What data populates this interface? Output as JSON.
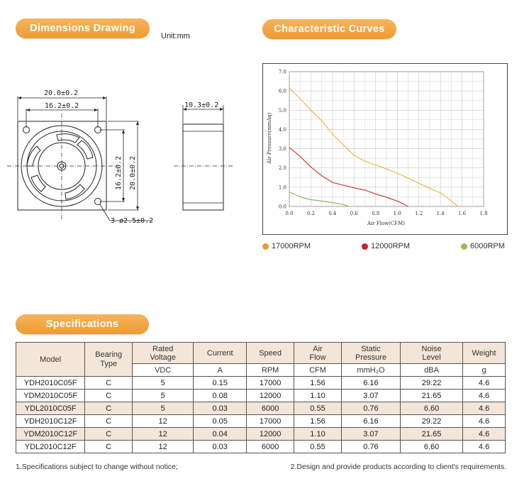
{
  "header": {
    "dimensions_title": "Dimensions Drawing",
    "unit_label": "Unit:mm",
    "curves_title": "Characteristic Curves",
    "specs_title": "Specifications"
  },
  "drawing": {
    "width_outer": "20.0±0.2",
    "width_inner": "16.2±0.2",
    "height_inner": "16.2±0.2",
    "height_outer": "20.0±0.2",
    "hole_spec": "3-ø2.5±0.2",
    "thickness": "10.3±0.2"
  },
  "chart_data": {
    "type": "line",
    "xlabel": "Air Flow(CFM)",
    "ylabel": "Air Pressure(mmAq)",
    "xlim": [
      0,
      1.8
    ],
    "ylim": [
      0,
      7.0
    ],
    "xticks": [
      "0.0",
      "0.2",
      "0.4",
      "0.6",
      "0.8",
      "1.0",
      "1.2",
      "1.4",
      "1.6",
      "1.8"
    ],
    "yticks": [
      "0.0",
      "1.0",
      "2.0",
      "3.0",
      "4.0",
      "5.0",
      "6.0",
      "7.0"
    ],
    "grid": true,
    "series": [
      {
        "name": "17000RPM",
        "color": "#f0b545",
        "x": [
          0,
          0.1,
          0.2,
          0.3,
          0.4,
          0.5,
          0.6,
          0.7,
          0.8,
          0.9,
          1.0,
          1.1,
          1.2,
          1.3,
          1.4,
          1.5,
          1.56
        ],
        "y": [
          6.16,
          5.6,
          5.0,
          4.45,
          3.75,
          3.2,
          2.65,
          2.35,
          2.15,
          1.95,
          1.72,
          1.48,
          1.2,
          0.95,
          0.7,
          0.3,
          0.0
        ]
      },
      {
        "name": "12000RPM",
        "color": "#d43a32",
        "x": [
          0,
          0.1,
          0.2,
          0.3,
          0.4,
          0.5,
          0.6,
          0.7,
          0.8,
          0.9,
          1.0,
          1.05,
          1.1
        ],
        "y": [
          3.07,
          2.6,
          2.05,
          1.6,
          1.25,
          1.1,
          0.97,
          0.85,
          0.65,
          0.48,
          0.28,
          0.15,
          0.0
        ]
      },
      {
        "name": "6000RPM",
        "color": "#8fb858",
        "x": [
          0,
          0.1,
          0.2,
          0.3,
          0.4,
          0.5,
          0.55
        ],
        "y": [
          0.76,
          0.5,
          0.35,
          0.28,
          0.2,
          0.1,
          0.0
        ]
      }
    ]
  },
  "legend": [
    {
      "label": "17000RPM",
      "color": "#ef9a3a"
    },
    {
      "label": "12000RPM",
      "color": "#c8241c"
    },
    {
      "label": "6000RPM",
      "color": "#8fc04a"
    }
  ],
  "table": {
    "headers": [
      "Model",
      "Bearing\nType",
      "Rated\nVoltage",
      "Current",
      "Speed",
      "Air\nFlow",
      "Static\nPressure",
      "Noise\nLevel",
      "Weight"
    ],
    "units": [
      "VDC",
      "A",
      "RPM",
      "CFM",
      "mmH₂O",
      "dBA",
      "g"
    ],
    "rows": [
      [
        "YDH2010C05F",
        "C",
        "5",
        "0.15",
        "17000",
        "1.56",
        "6.16",
        "29.22",
        "4.6"
      ],
      [
        "YDM2010C05F",
        "C",
        "5",
        "0.08",
        "12000",
        "1.10",
        "3.07",
        "21.65",
        "4.6"
      ],
      [
        "YDL2010C05F",
        "C",
        "5",
        "0.03",
        "6000",
        "0.55",
        "0.76",
        "6.60",
        "4.6"
      ],
      [
        "YDH2010C12F",
        "C",
        "12",
        "0.05",
        "17000",
        "1.56",
        "6.16",
        "29.22",
        "4.6"
      ],
      [
        "YDM2010C12F",
        "C",
        "12",
        "0.04",
        "12000",
        "1.10",
        "3.07",
        "21.65",
        "4.6"
      ],
      [
        "YDL2010C12F",
        "C",
        "12",
        "0.03",
        "6000",
        "0.55",
        "0.76",
        "6.60",
        "4.6"
      ]
    ]
  },
  "notes": {
    "left": "1.Specifications subject to change without notice;",
    "right": "2.Design and provide products according to client's requirements."
  }
}
